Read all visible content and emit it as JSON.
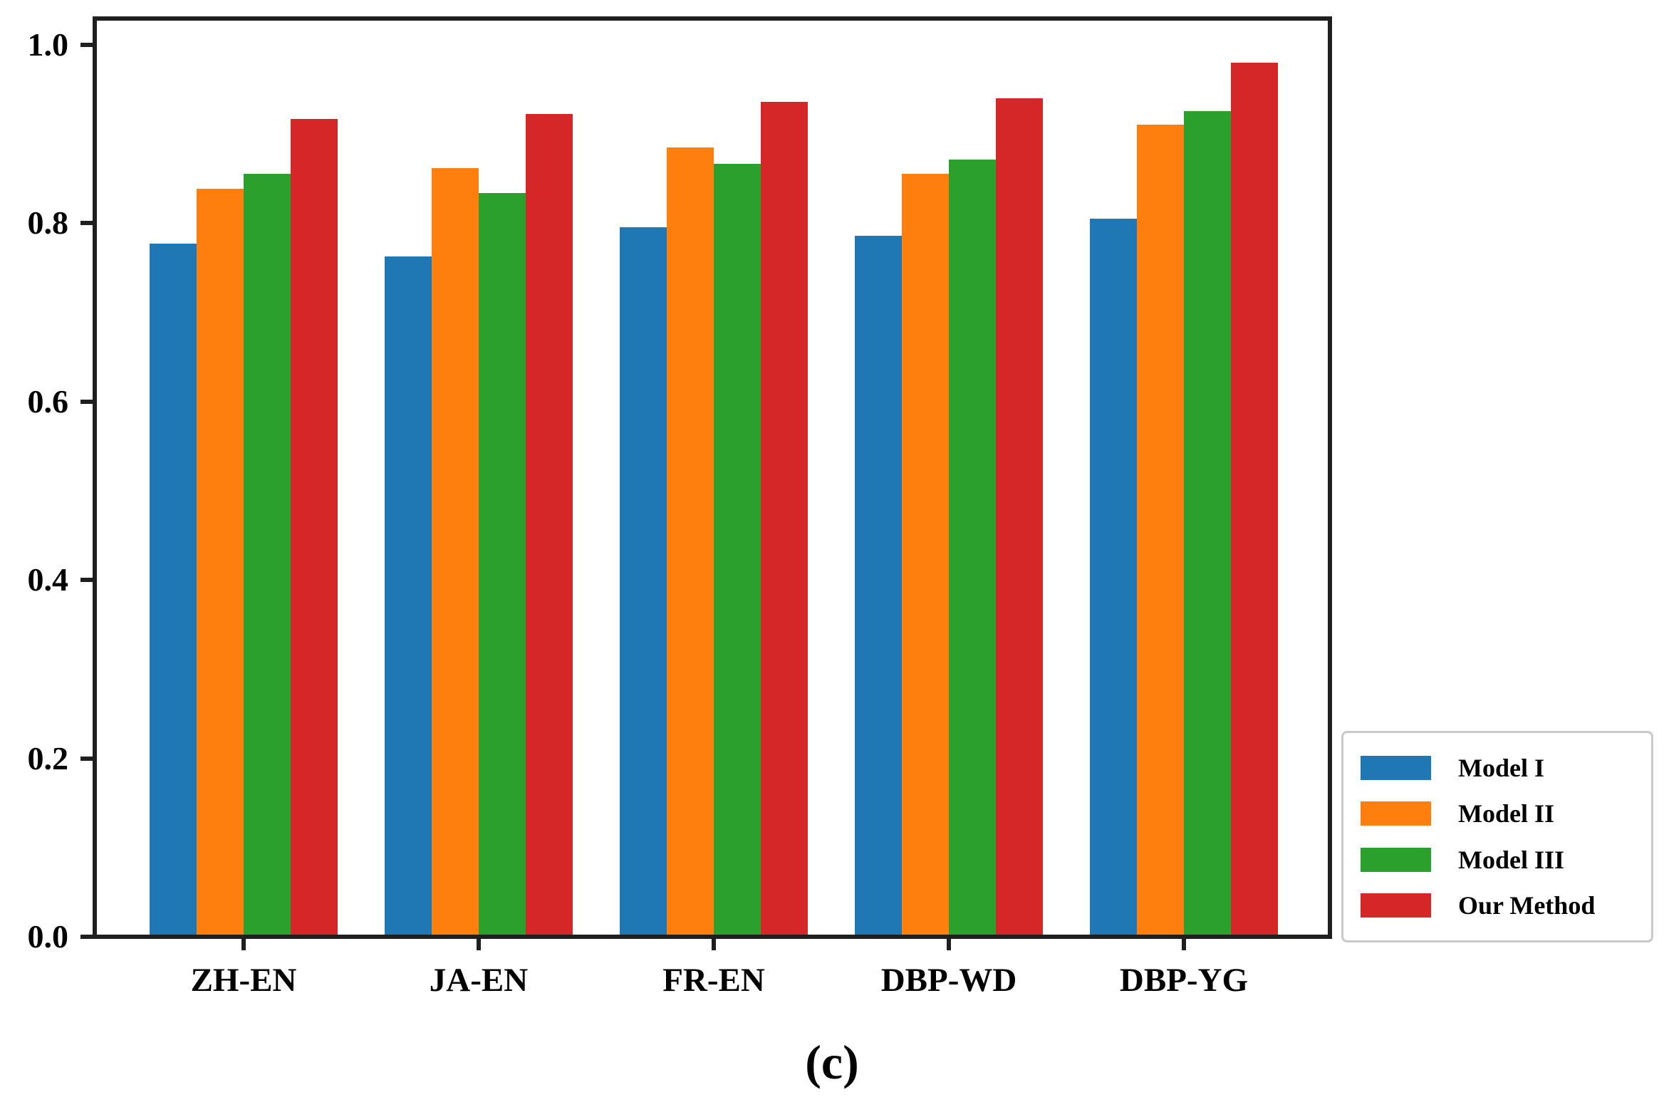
{
  "figure": {
    "caption": "(c)"
  },
  "chart_data": {
    "type": "bar",
    "title": "",
    "xlabel": "",
    "ylabel": "",
    "grid": false,
    "background": "#ffffff",
    "axis_color": "#1f1f1f",
    "categories": [
      "ZH-EN",
      "JA-EN",
      "FR-EN",
      "DBP-WD",
      "DBP-YG"
    ],
    "series": [
      {
        "name": "Model I",
        "color": "#1f77b4",
        "values": [
          0.776,
          0.762,
          0.795,
          0.785,
          0.804
        ]
      },
      {
        "name": "Model II",
        "color": "#ff7f0e",
        "values": [
          0.838,
          0.861,
          0.884,
          0.855,
          0.91
        ]
      },
      {
        "name": "Model III",
        "color": "#2ca02c",
        "values": [
          0.855,
          0.833,
          0.866,
          0.871,
          0.925
        ]
      },
      {
        "name": "Our Method",
        "color": "#d62728",
        "values": [
          0.916,
          0.922,
          0.935,
          0.939,
          0.979
        ]
      }
    ],
    "ylim": [
      0.0,
      1.03
    ],
    "yticks": [
      0.0,
      0.2,
      0.4,
      0.6,
      0.8,
      1.0
    ],
    "ytick_labels": [
      "0.0",
      "0.2",
      "0.4",
      "0.6",
      "0.8",
      "1.0"
    ],
    "legend": {
      "position": "lower-right-outside",
      "entries": [
        "Model I",
        "Model II",
        "Model III",
        "Our Method"
      ]
    }
  }
}
